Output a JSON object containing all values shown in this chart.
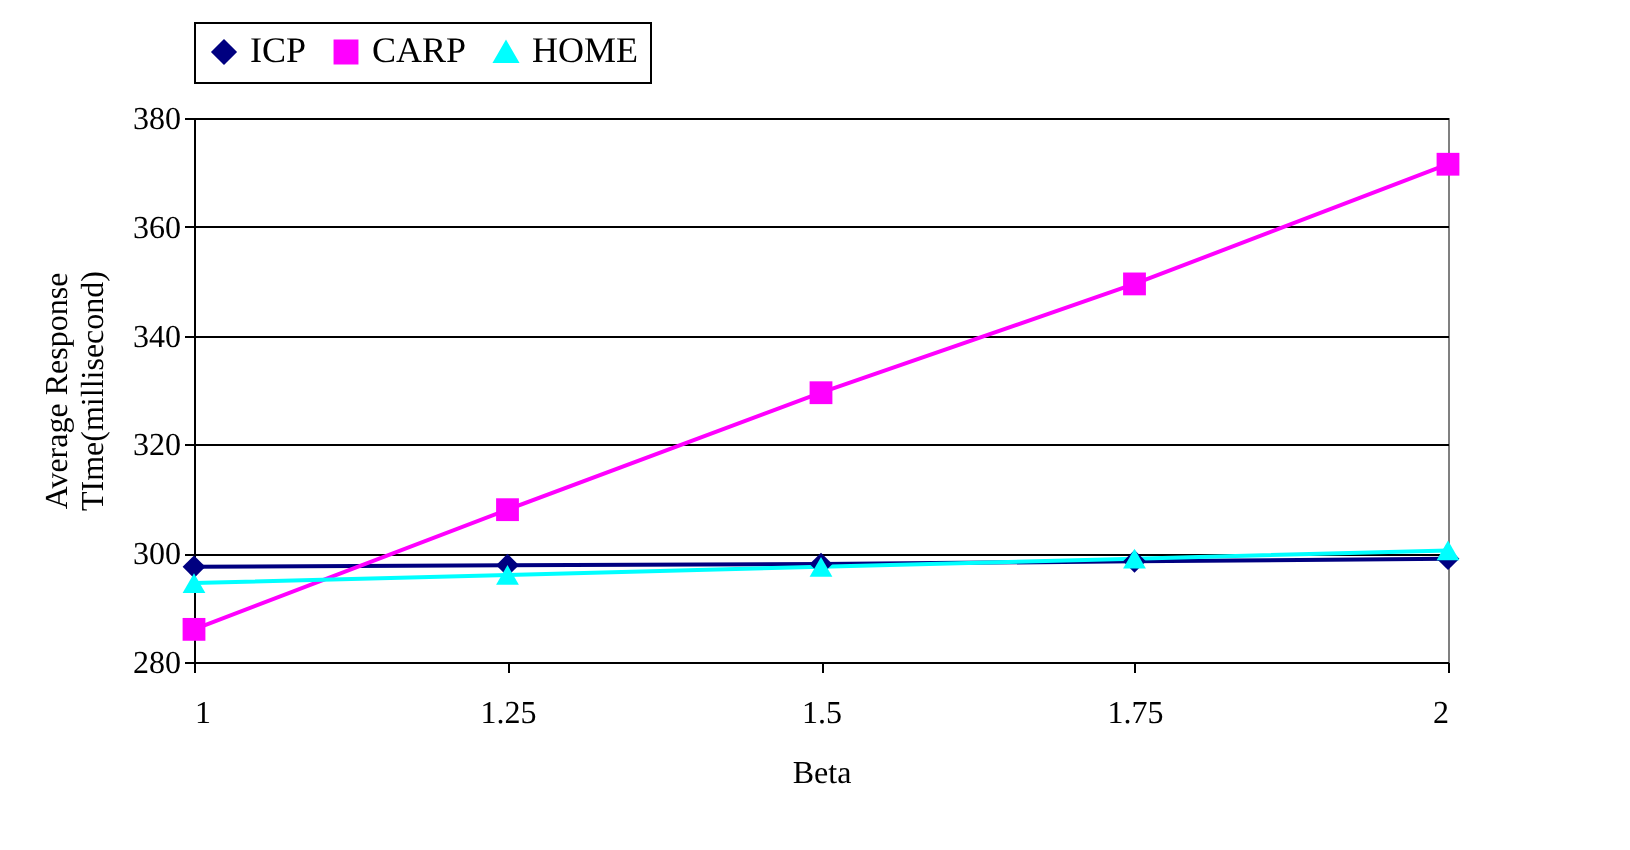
{
  "chart_data": {
    "type": "line",
    "xlabel": "Beta",
    "ylabel": "Average Response TIme(millisecond)",
    "x": [
      1,
      1.25,
      1.5,
      1.75,
      2
    ],
    "xlim": [
      1,
      2
    ],
    "xticks": [
      1,
      1.25,
      1.5,
      1.75,
      2
    ],
    "ylim": [
      280,
      380
    ],
    "yticks": [
      280,
      300,
      320,
      340,
      360,
      380
    ],
    "grid": "y",
    "legend": "top",
    "series": [
      {
        "name": "ICP",
        "color": "#000080",
        "marker": "diamond",
        "values": [
          297.5,
          297.8,
          298,
          298.5,
          299
        ]
      },
      {
        "name": "CARP",
        "color": "#ff00ff",
        "marker": "square",
        "values": [
          286,
          308,
          329.5,
          349.5,
          371.5
        ]
      },
      {
        "name": "HOME",
        "color": "#00ffff",
        "marker": "triangle",
        "values": [
          294.5,
          296,
          297.5,
          299,
          300.5
        ]
      }
    ]
  }
}
